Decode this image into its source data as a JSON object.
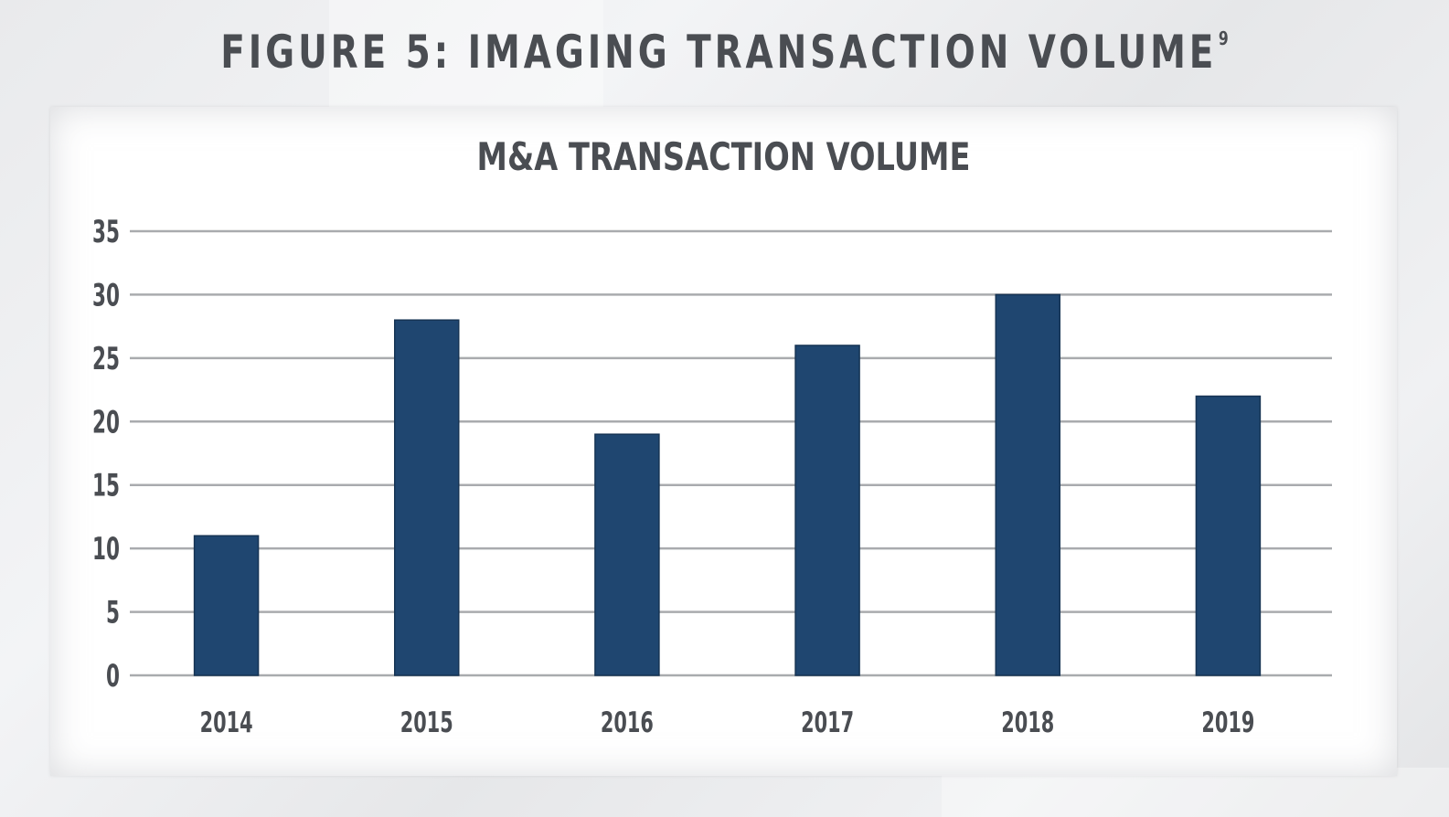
{
  "figure": {
    "title": "FIGURE 5: IMAGING TRANSACTION VOLUME",
    "footnote": "9"
  },
  "chart_data": {
    "type": "bar",
    "title": "M&A TRANSACTION VOLUME",
    "xlabel": "",
    "ylabel": "",
    "categories": [
      "2014",
      "2015",
      "2016",
      "2017",
      "2018",
      "2019"
    ],
    "values": [
      11,
      28,
      19,
      26,
      30,
      22
    ],
    "ylim": [
      0,
      35
    ],
    "yticks": [
      "0",
      "5",
      "10",
      "15",
      "20",
      "25",
      "30",
      "35"
    ],
    "grid": true,
    "legend": "none",
    "bar_color": "#1f4670",
    "grid_color": "#a9abae",
    "text_color": "#4a4d52"
  }
}
